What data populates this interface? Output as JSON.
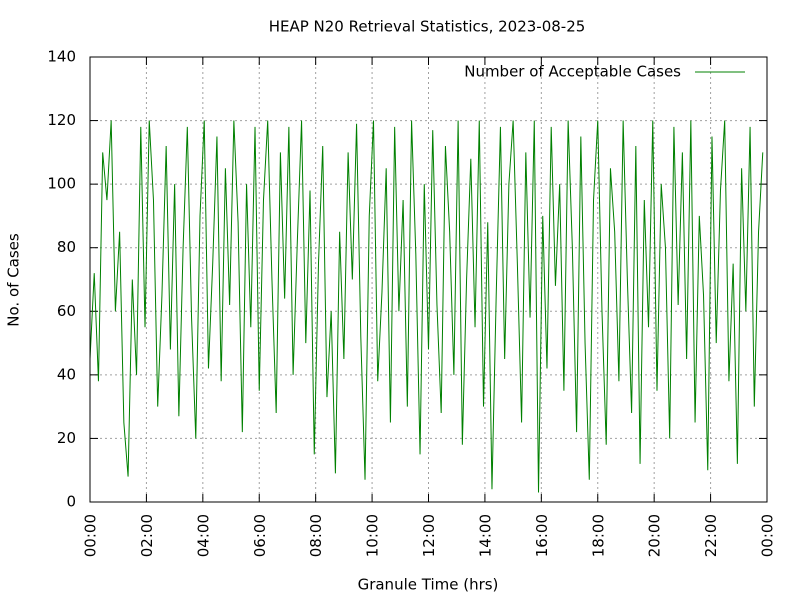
{
  "chart_data": {
    "type": "line",
    "title": "HEAP N20 Retrieval Statistics, 2023-08-25",
    "xlabel": "Granule Time (hrs)",
    "ylabel": "No. of Cases",
    "x": [
      0,
      9,
      18,
      27,
      36,
      45,
      54,
      63,
      72,
      81,
      90,
      99,
      108,
      117,
      126,
      135,
      144,
      153,
      162,
      171,
      180,
      189,
      198,
      207,
      216,
      225,
      234,
      243,
      252,
      261,
      270,
      279,
      288,
      297,
      306,
      315,
      324,
      333,
      342,
      351,
      360,
      369,
      378,
      387,
      396,
      405,
      414,
      423,
      432,
      441,
      450,
      459,
      468,
      477,
      486,
      495,
      504,
      513,
      522,
      531,
      540,
      549,
      558,
      567,
      576,
      585,
      594,
      603,
      612,
      621,
      630,
      639,
      648,
      657,
      666,
      675,
      684,
      693,
      702,
      711,
      720,
      729,
      738,
      747,
      756,
      765,
      774,
      783,
      792,
      801,
      810,
      819,
      828,
      837,
      846,
      855,
      864,
      873,
      882,
      891,
      900,
      909,
      918,
      927,
      936,
      945,
      954,
      963,
      972,
      981,
      990,
      999,
      1008,
      1017,
      1026,
      1035,
      1044,
      1053,
      1062,
      1071,
      1080,
      1089,
      1098,
      1107,
      1116,
      1125,
      1134,
      1143,
      1152,
      1161,
      1170,
      1179,
      1188,
      1197,
      1206,
      1215,
      1224,
      1233,
      1242,
      1251,
      1260,
      1269,
      1278,
      1287,
      1296,
      1305,
      1314,
      1323,
      1332,
      1341,
      1350,
      1359,
      1368,
      1377,
      1386,
      1395,
      1404,
      1413,
      1422,
      1431
    ],
    "series": [
      {
        "name": "Number of Acceptable Cases",
        "color": "#008000",
        "values": [
          45,
          72,
          38,
          110,
          95,
          120,
          60,
          85,
          25,
          8,
          70,
          40,
          118,
          55,
          120,
          95,
          30,
          65,
          112,
          48,
          100,
          27,
          80,
          118,
          58,
          20,
          90,
          120,
          42,
          75,
          115,
          38,
          105,
          62,
          120,
          88,
          22,
          100,
          55,
          118,
          35,
          95,
          120,
          70,
          28,
          110,
          64,
          118,
          40,
          82,
          120,
          50,
          98,
          15,
          75,
          112,
          33,
          60,
          9,
          85,
          45,
          110,
          70,
          119,
          52,
          7,
          90,
          120,
          38,
          66,
          105,
          25,
          118,
          60,
          95,
          30,
          120,
          78,
          15,
          100,
          48,
          117,
          62,
          28,
          112,
          85,
          40,
          120,
          18,
          70,
          108,
          55,
          120,
          30,
          88,
          4,
          65,
          118,
          45,
          100,
          120,
          75,
          25,
          110,
          58,
          120,
          3,
          90,
          42,
          118,
          68,
          100,
          35,
          120,
          80,
          22,
          115,
          50,
          7,
          95,
          120,
          60,
          18,
          105,
          85,
          38,
          120,
          70,
          28,
          112,
          12,
          95,
          55,
          120,
          35,
          100,
          80,
          20,
          118,
          62,
          110,
          45,
          120,
          25,
          90,
          65,
          10,
          115,
          50,
          98,
          120,
          38,
          75,
          12,
          105,
          60,
          118,
          30,
          85,
          110
        ]
      }
    ],
    "xlim": [
      0,
      1440
    ],
    "xticks": [
      {
        "value": 0,
        "label": "00:00"
      },
      {
        "value": 120,
        "label": "02:00"
      },
      {
        "value": 240,
        "label": "04:00"
      },
      {
        "value": 360,
        "label": "06:00"
      },
      {
        "value": 480,
        "label": "08:00"
      },
      {
        "value": 600,
        "label": "10:00"
      },
      {
        "value": 720,
        "label": "12:00"
      },
      {
        "value": 840,
        "label": "14:00"
      },
      {
        "value": 960,
        "label": "16:00"
      },
      {
        "value": 1080,
        "label": "18:00"
      },
      {
        "value": 1200,
        "label": "20:00"
      },
      {
        "value": 1320,
        "label": "22:00"
      },
      {
        "value": 1440,
        "label": "00:00"
      }
    ],
    "ylim": [
      0,
      140
    ],
    "yticks": [
      0,
      20,
      40,
      60,
      80,
      100,
      120,
      140
    ],
    "grid": true,
    "legend": "top right"
  }
}
